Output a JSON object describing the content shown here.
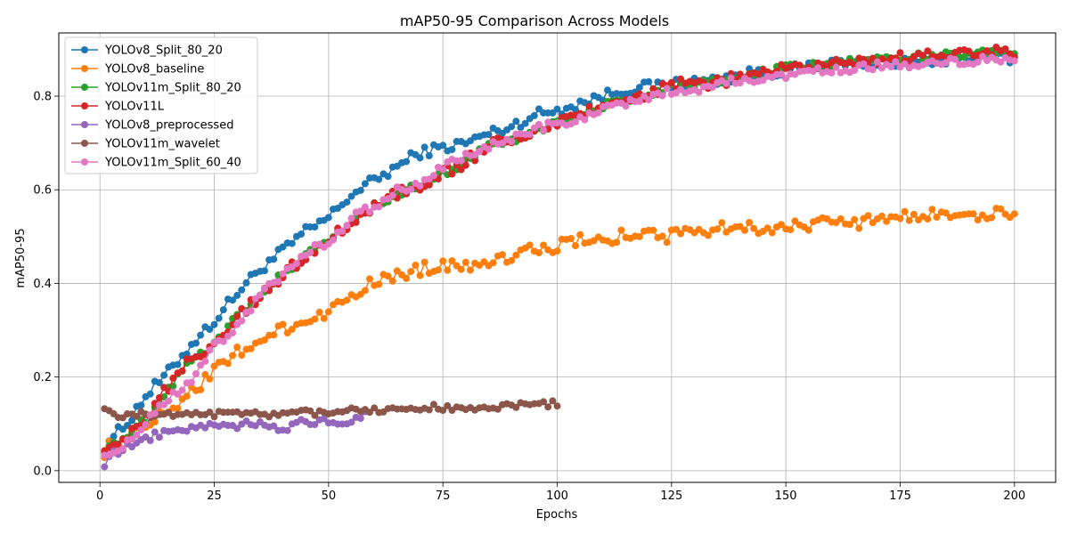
{
  "chart_data": {
    "type": "line",
    "title": "mAP50-95 Comparison Across Models",
    "xlabel": "Epochs",
    "ylabel": "mAP50-95",
    "xlim": [
      -9,
      209
    ],
    "ylim": [
      -0.025,
      0.935
    ],
    "x_ticks": [
      0,
      25,
      50,
      75,
      100,
      125,
      150,
      175,
      200
    ],
    "y_ticks": [
      0.0,
      0.2,
      0.4,
      0.6,
      0.8
    ],
    "y_tick_labels": [
      "0.0",
      "0.2",
      "0.4",
      "0.6",
      "0.8"
    ],
    "grid": true,
    "legend_position": "top-left",
    "series": [
      {
        "name": "YOLOv8_Split_80_20",
        "color": "#1f77b4",
        "x_range": [
          1,
          200
        ],
        "anchors": [
          [
            1,
            0.04
          ],
          [
            2,
            0.068
          ],
          [
            5,
            0.09
          ],
          [
            10,
            0.16
          ],
          [
            15,
            0.21
          ],
          [
            20,
            0.27
          ],
          [
            25,
            0.32
          ],
          [
            30,
            0.38
          ],
          [
            35,
            0.43
          ],
          [
            40,
            0.47
          ],
          [
            45,
            0.51
          ],
          [
            50,
            0.54
          ],
          [
            55,
            0.59
          ],
          [
            60,
            0.62
          ],
          [
            65,
            0.65
          ],
          [
            70,
            0.68
          ],
          [
            75,
            0.69
          ],
          [
            80,
            0.7
          ],
          [
            85,
            0.72
          ],
          [
            90,
            0.735
          ],
          [
            95,
            0.76
          ],
          [
            100,
            0.77
          ],
          [
            105,
            0.785
          ],
          [
            110,
            0.8
          ],
          [
            115,
            0.815
          ],
          [
            120,
            0.82
          ],
          [
            125,
            0.825
          ],
          [
            130,
            0.83
          ],
          [
            135,
            0.835
          ],
          [
            140,
            0.845
          ],
          [
            145,
            0.85
          ],
          [
            150,
            0.855
          ],
          [
            160,
            0.865
          ],
          [
            170,
            0.87
          ],
          [
            180,
            0.875
          ],
          [
            190,
            0.88
          ],
          [
            200,
            0.88
          ]
        ],
        "noise": 0.012
      },
      {
        "name": "YOLOv8_baseline",
        "color": "#ff7f0e",
        "x_range": [
          1,
          200
        ],
        "anchors": [
          [
            1,
            0.04
          ],
          [
            3,
            0.06
          ],
          [
            5,
            0.07
          ],
          [
            10,
            0.1
          ],
          [
            15,
            0.13
          ],
          [
            20,
            0.17
          ],
          [
            25,
            0.21
          ],
          [
            30,
            0.25
          ],
          [
            35,
            0.28
          ],
          [
            40,
            0.3
          ],
          [
            45,
            0.32
          ],
          [
            50,
            0.34
          ],
          [
            55,
            0.38
          ],
          [
            60,
            0.4
          ],
          [
            65,
            0.42
          ],
          [
            70,
            0.43
          ],
          [
            75,
            0.44
          ],
          [
            80,
            0.44
          ],
          [
            85,
            0.45
          ],
          [
            90,
            0.46
          ],
          [
            95,
            0.47
          ],
          [
            100,
            0.48
          ],
          [
            105,
            0.49
          ],
          [
            110,
            0.49
          ],
          [
            115,
            0.505
          ],
          [
            120,
            0.505
          ],
          [
            125,
            0.5
          ],
          [
            130,
            0.51
          ],
          [
            135,
            0.52
          ],
          [
            140,
            0.52
          ],
          [
            145,
            0.52
          ],
          [
            150,
            0.52
          ],
          [
            155,
            0.525
          ],
          [
            160,
            0.53
          ],
          [
            165,
            0.53
          ],
          [
            170,
            0.535
          ],
          [
            175,
            0.54
          ],
          [
            180,
            0.545
          ],
          [
            185,
            0.55
          ],
          [
            190,
            0.55
          ],
          [
            195,
            0.548
          ],
          [
            200,
            0.55
          ]
        ],
        "noise": 0.014
      },
      {
        "name": "YOLOv11m_Split_80_20",
        "color": "#2ca02c",
        "x_range": [
          1,
          200
        ],
        "anchors": [
          [
            1,
            0.045
          ],
          [
            5,
            0.07
          ],
          [
            10,
            0.11
          ],
          [
            15,
            0.175
          ],
          [
            20,
            0.24
          ],
          [
            25,
            0.27
          ],
          [
            30,
            0.33
          ],
          [
            35,
            0.37
          ],
          [
            40,
            0.42
          ],
          [
            45,
            0.46
          ],
          [
            50,
            0.49
          ],
          [
            55,
            0.53
          ],
          [
            60,
            0.565
          ],
          [
            65,
            0.59
          ],
          [
            70,
            0.61
          ],
          [
            75,
            0.635
          ],
          [
            80,
            0.66
          ],
          [
            85,
            0.695
          ],
          [
            90,
            0.705
          ],
          [
            95,
            0.725
          ],
          [
            100,
            0.745
          ],
          [
            105,
            0.76
          ],
          [
            110,
            0.78
          ],
          [
            115,
            0.79
          ],
          [
            120,
            0.8
          ],
          [
            125,
            0.82
          ],
          [
            130,
            0.825
          ],
          [
            135,
            0.83
          ],
          [
            140,
            0.84
          ],
          [
            145,
            0.85
          ],
          [
            150,
            0.86
          ],
          [
            155,
            0.865
          ],
          [
            160,
            0.87
          ],
          [
            165,
            0.875
          ],
          [
            170,
            0.878
          ],
          [
            175,
            0.882
          ],
          [
            180,
            0.885
          ],
          [
            185,
            0.888
          ],
          [
            190,
            0.89
          ],
          [
            195,
            0.893
          ],
          [
            200,
            0.895
          ]
        ],
        "noise": 0.008
      },
      {
        "name": "YOLOv11L",
        "color": "#d62728",
        "x_range": [
          1,
          200
        ],
        "anchors": [
          [
            1,
            0.05
          ],
          [
            5,
            0.07
          ],
          [
            10,
            0.11
          ],
          [
            15,
            0.18
          ],
          [
            20,
            0.24
          ],
          [
            25,
            0.27
          ],
          [
            30,
            0.33
          ],
          [
            35,
            0.37
          ],
          [
            40,
            0.42
          ],
          [
            45,
            0.46
          ],
          [
            50,
            0.49
          ],
          [
            55,
            0.53
          ],
          [
            60,
            0.57
          ],
          [
            65,
            0.59
          ],
          [
            70,
            0.61
          ],
          [
            75,
            0.635
          ],
          [
            80,
            0.66
          ],
          [
            85,
            0.695
          ],
          [
            90,
            0.705
          ],
          [
            95,
            0.725
          ],
          [
            100,
            0.745
          ],
          [
            105,
            0.76
          ],
          [
            110,
            0.78
          ],
          [
            115,
            0.79
          ],
          [
            120,
            0.8
          ],
          [
            125,
            0.825
          ],
          [
            130,
            0.825
          ],
          [
            135,
            0.83
          ],
          [
            140,
            0.84
          ],
          [
            145,
            0.85
          ],
          [
            150,
            0.86
          ],
          [
            155,
            0.865
          ],
          [
            160,
            0.87
          ],
          [
            165,
            0.875
          ],
          [
            170,
            0.878
          ],
          [
            175,
            0.882
          ],
          [
            180,
            0.885
          ],
          [
            185,
            0.888
          ],
          [
            190,
            0.89
          ],
          [
            195,
            0.893
          ],
          [
            200,
            0.895
          ]
        ],
        "noise": 0.012
      },
      {
        "name": "YOLOv8_preprocessed",
        "color": "#9467bd",
        "x_range": [
          1,
          58
        ],
        "anchors": [
          [
            1,
            0.012
          ],
          [
            3,
            0.035
          ],
          [
            5,
            0.045
          ],
          [
            8,
            0.06
          ],
          [
            10,
            0.068
          ],
          [
            15,
            0.085
          ],
          [
            20,
            0.09
          ],
          [
            25,
            0.1
          ],
          [
            30,
            0.095
          ],
          [
            35,
            0.105
          ],
          [
            40,
            0.09
          ],
          [
            45,
            0.105
          ],
          [
            50,
            0.105
          ],
          [
            55,
            0.105
          ],
          [
            58,
            0.12
          ]
        ],
        "noise": 0.008
      },
      {
        "name": "YOLOv11m_wavelet",
        "color": "#8c564b",
        "x_range": [
          1,
          100
        ],
        "anchors": [
          [
            1,
            0.135
          ],
          [
            3,
            0.12
          ],
          [
            5,
            0.115
          ],
          [
            10,
            0.12
          ],
          [
            15,
            0.12
          ],
          [
            20,
            0.125
          ],
          [
            25,
            0.12
          ],
          [
            30,
            0.12
          ],
          [
            35,
            0.12
          ],
          [
            40,
            0.125
          ],
          [
            45,
            0.125
          ],
          [
            50,
            0.125
          ],
          [
            55,
            0.135
          ],
          [
            60,
            0.13
          ],
          [
            65,
            0.13
          ],
          [
            70,
            0.135
          ],
          [
            75,
            0.135
          ],
          [
            80,
            0.128
          ],
          [
            85,
            0.13
          ],
          [
            90,
            0.14
          ],
          [
            95,
            0.142
          ],
          [
            100,
            0.143
          ]
        ],
        "noise": 0.007
      },
      {
        "name": "YOLOv11m_Split_60_40",
        "color": "#e377c2",
        "x_range": [
          1,
          200
        ],
        "anchors": [
          [
            1,
            0.035
          ],
          [
            5,
            0.05
          ],
          [
            10,
            0.1
          ],
          [
            15,
            0.155
          ],
          [
            20,
            0.19
          ],
          [
            25,
            0.265
          ],
          [
            30,
            0.31
          ],
          [
            35,
            0.375
          ],
          [
            40,
            0.42
          ],
          [
            45,
            0.465
          ],
          [
            50,
            0.49
          ],
          [
            55,
            0.54
          ],
          [
            60,
            0.565
          ],
          [
            65,
            0.6
          ],
          [
            70,
            0.615
          ],
          [
            75,
            0.65
          ],
          [
            80,
            0.67
          ],
          [
            85,
            0.69
          ],
          [
            90,
            0.71
          ],
          [
            95,
            0.73
          ],
          [
            100,
            0.74
          ],
          [
            105,
            0.755
          ],
          [
            110,
            0.77
          ],
          [
            115,
            0.785
          ],
          [
            120,
            0.8
          ],
          [
            125,
            0.81
          ],
          [
            130,
            0.815
          ],
          [
            135,
            0.825
          ],
          [
            140,
            0.835
          ],
          [
            145,
            0.84
          ],
          [
            150,
            0.845
          ],
          [
            160,
            0.855
          ],
          [
            170,
            0.865
          ],
          [
            180,
            0.87
          ],
          [
            190,
            0.875
          ],
          [
            200,
            0.878
          ]
        ],
        "noise": 0.009
      }
    ]
  }
}
